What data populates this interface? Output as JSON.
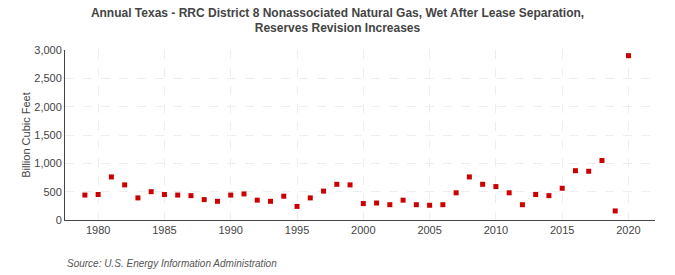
{
  "chart_data": {
    "type": "scatter",
    "title": "Annual Texas - RRC District 8 Nonassociated Natural Gas, Wet After Lease Separation,\nReserves Revision Increases",
    "ylabel": "Billion Cubic Feet",
    "annotations": [
      "Source: U.S. Energy Information Administration"
    ],
    "x": [
      1979,
      1980,
      1981,
      1982,
      1983,
      1984,
      1985,
      1986,
      1987,
      1988,
      1989,
      1990,
      1991,
      1992,
      1993,
      1994,
      1995,
      1996,
      1997,
      1998,
      1999,
      2000,
      2001,
      2002,
      2003,
      2004,
      2005,
      2006,
      2007,
      2008,
      2009,
      2010,
      2011,
      2012,
      2013,
      2014,
      2015,
      2016,
      2017,
      2018,
      2019,
      2020
    ],
    "values": [
      440,
      450,
      760,
      620,
      390,
      500,
      450,
      440,
      430,
      360,
      330,
      440,
      460,
      350,
      330,
      420,
      240,
      390,
      510,
      630,
      620,
      290,
      300,
      270,
      350,
      270,
      260,
      270,
      480,
      760,
      630,
      590,
      480,
      270,
      450,
      430,
      560,
      870,
      860,
      1050,
      160,
      2900
    ],
    "color": "#cc0000",
    "marker": "square",
    "xlim": [
      1977.5,
      2022.0
    ],
    "xticks": [
      1980,
      1985,
      1990,
      1995,
      2000,
      2005,
      2010,
      2015,
      2020
    ],
    "ylim": [
      0,
      3000
    ],
    "yticks": [
      0,
      500,
      {
        "value": 1000,
        "label": "1,000"
      },
      {
        "value": 1500,
        "label": "1,500"
      },
      {
        "value": 2000,
        "label": "2,000"
      },
      {
        "value": 2500,
        "label": "2,500"
      },
      {
        "value": 3000,
        "label": "3,000"
      }
    ],
    "grid": true
  }
}
